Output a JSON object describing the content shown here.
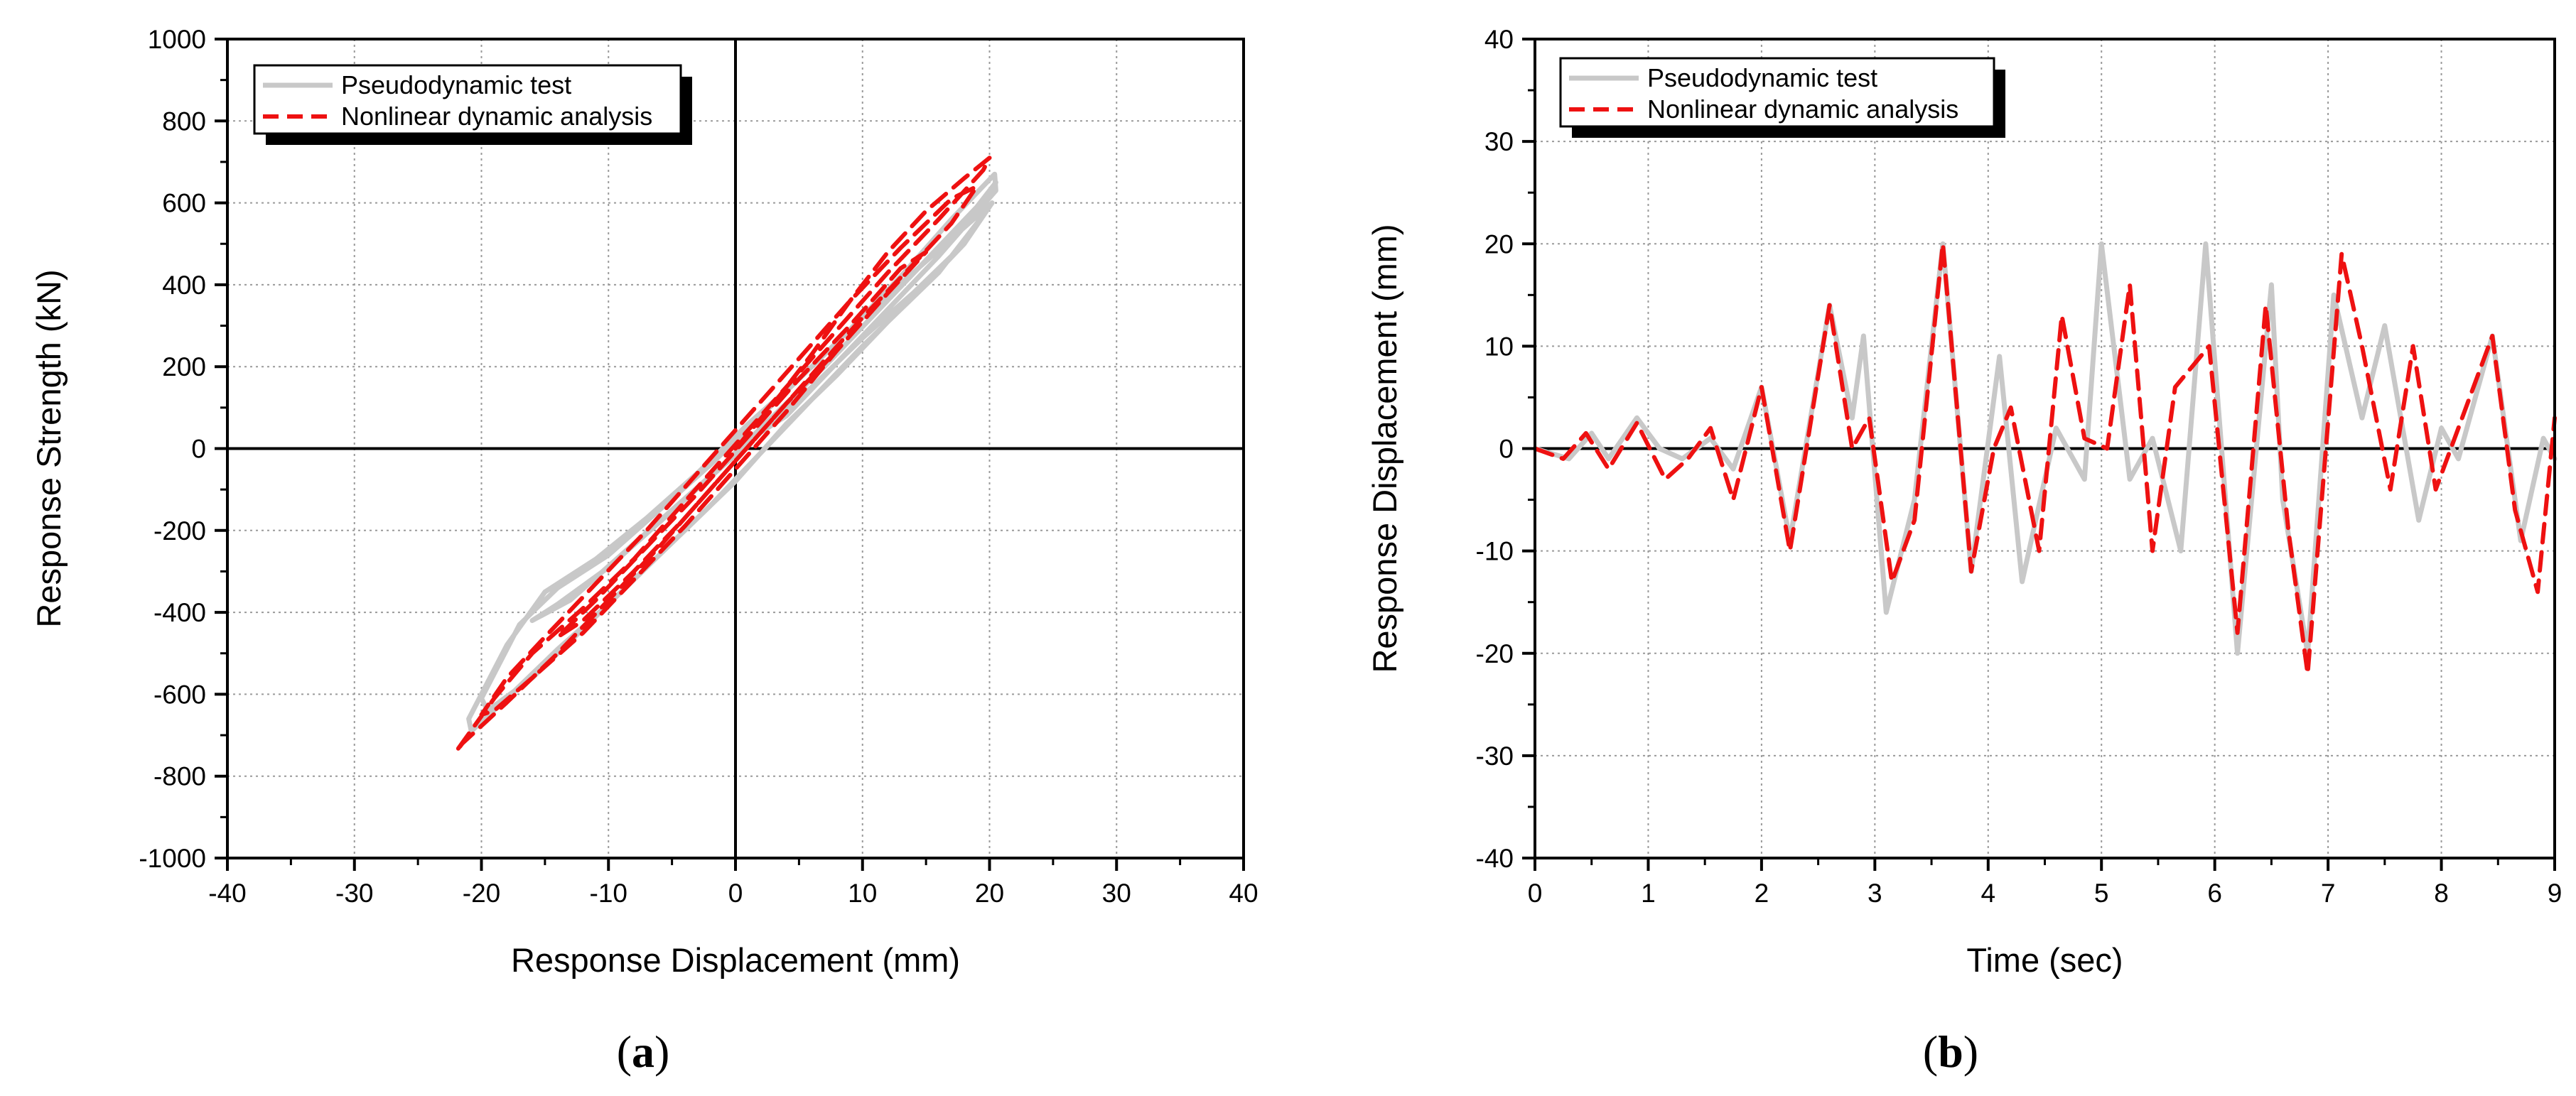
{
  "captions": {
    "a": "a",
    "b": "b"
  },
  "colors": {
    "test": "#c8c8c8",
    "analysis": "#ee1111",
    "grid": "#9a9a9a"
  },
  "chart_data": [
    {
      "id": "a",
      "type": "line",
      "xlabel": "Response Displacement (mm)",
      "ylabel": "Response Strength (kN)",
      "xlim": [
        -40,
        40
      ],
      "ylim": [
        -1000,
        1000
      ],
      "xticks": [
        -40,
        -30,
        -20,
        -10,
        0,
        10,
        20,
        30,
        40
      ],
      "yticks": [
        -1000,
        -800,
        -600,
        -400,
        -200,
        0,
        200,
        400,
        600,
        800,
        1000
      ],
      "grid": true,
      "legend_position": "top-left",
      "series": [
        {
          "name": "Pseudodynamic test",
          "style": "solid",
          "x": [
            0,
            4,
            8,
            12,
            16,
            20.5,
            20.4,
            17,
            13,
            9,
            5,
            1,
            -3,
            -7,
            -11,
            -15,
            -18,
            -21,
            -20.8,
            -18,
            -14,
            -10,
            -6,
            -2,
            2,
            6,
            10,
            14,
            18,
            20.2,
            18,
            14,
            10,
            6,
            2,
            -2,
            -6,
            -10,
            -14,
            -17,
            -20,
            -19.5,
            -16,
            -12,
            -8,
            -4,
            0,
            4,
            8,
            12,
            16,
            19.5,
            18,
            14,
            10,
            6,
            2,
            -2,
            -6,
            -10,
            -14,
            -16,
            -13,
            -9,
            -5,
            -1,
            3,
            7,
            11,
            15,
            19,
            20.5
          ],
          "y": [
            0,
            80,
            210,
            340,
            470,
            630,
            670,
            560,
            420,
            290,
            170,
            60,
            -60,
            -170,
            -270,
            -350,
            -480,
            -660,
            -690,
            -610,
            -490,
            -380,
            -260,
            -140,
            -10,
            120,
            250,
            370,
            500,
            600,
            540,
            430,
            320,
            200,
            80,
            -40,
            -150,
            -260,
            -340,
            -430,
            -610,
            -640,
            -560,
            -440,
            -320,
            -200,
            -80,
            60,
            180,
            310,
            430,
            570,
            500,
            380,
            270,
            150,
            40,
            -70,
            -180,
            -290,
            -380,
            -420,
            -370,
            -260,
            -150,
            -40,
            80,
            200,
            330,
            460,
            590,
            650
          ]
        },
        {
          "name": "Nonlinear dynamic analysis",
          "style": "dashed",
          "x": [
            0,
            3,
            6,
            9,
            12,
            15,
            18,
            20,
            19.5,
            16,
            12,
            8,
            4,
            0,
            -4,
            -8,
            -12,
            -16,
            -19,
            -22,
            -21.5,
            -18,
            -14,
            -10,
            -6,
            -2,
            2,
            6,
            10,
            14,
            17,
            19,
            17,
            13,
            9,
            5,
            1,
            -3,
            -7,
            -11,
            -15,
            -18,
            -20,
            -19,
            -16,
            -12,
            -8,
            -4,
            0,
            4,
            8,
            12,
            15,
            13,
            9,
            5,
            1,
            -3,
            -7,
            -11,
            -14,
            -12,
            -8,
            -4,
            0,
            4,
            8
          ],
          "y": [
            0,
            110,
            230,
            360,
            480,
            580,
            660,
            710,
            680,
            560,
            430,
            290,
            150,
            10,
            -130,
            -270,
            -390,
            -500,
            -610,
            -740,
            -720,
            -620,
            -500,
            -370,
            -240,
            -100,
            40,
            180,
            320,
            450,
            550,
            640,
            610,
            490,
            360,
            220,
            80,
            -60,
            -200,
            -330,
            -460,
            -560,
            -650,
            -640,
            -560,
            -450,
            -320,
            -190,
            -50,
            90,
            240,
            380,
            480,
            440,
            300,
            170,
            30,
            -110,
            -240,
            -370,
            -460,
            -420,
            -300,
            -170,
            -30,
            110,
            240
          ]
        }
      ]
    },
    {
      "id": "b",
      "type": "line",
      "xlabel": "Time (sec)",
      "ylabel": "Response Displacement (mm)",
      "xlim": [
        0,
        9
      ],
      "ylim": [
        -40,
        40
      ],
      "xticks": [
        0,
        1,
        2,
        3,
        4,
        5,
        6,
        7,
        8,
        9
      ],
      "yticks": [
        -40,
        -30,
        -20,
        -10,
        0,
        10,
        20,
        30,
        40
      ],
      "grid": true,
      "legend_position": "top-left",
      "series": [
        {
          "name": "Pseudodynamic test",
          "style": "solid",
          "x": [
            0,
            0.3,
            0.5,
            0.65,
            0.9,
            1.1,
            1.3,
            1.55,
            1.75,
            2.0,
            2.25,
            2.6,
            2.8,
            2.9,
            3.1,
            3.35,
            3.6,
            3.85,
            4.1,
            4.3,
            4.6,
            4.85,
            5.0,
            5.25,
            5.45,
            5.7,
            5.92,
            6.2,
            6.5,
            6.6,
            6.82,
            7.05,
            7.3,
            7.5,
            7.8,
            8.0,
            8.15,
            8.45,
            8.7,
            8.9,
            9.0
          ],
          "y": [
            0,
            -1,
            1.5,
            -1,
            3,
            0,
            -1,
            1,
            -2,
            6,
            -9,
            14,
            3,
            11,
            -16,
            -5,
            20,
            -12,
            9,
            -13,
            2,
            -3,
            20,
            -3,
            1,
            -10,
            20,
            -20,
            16,
            -5,
            -20,
            15,
            3,
            12,
            -7,
            2,
            -1,
            11,
            -9,
            1,
            -1
          ]
        },
        {
          "name": "Nonlinear dynamic analysis",
          "style": "dashed",
          "x": [
            0,
            0.25,
            0.45,
            0.65,
            0.9,
            1.15,
            1.35,
            1.55,
            1.75,
            2.0,
            2.25,
            2.6,
            2.8,
            2.95,
            3.15,
            3.35,
            3.6,
            3.85,
            4.05,
            4.2,
            4.45,
            4.65,
            4.85,
            5.05,
            5.25,
            5.45,
            5.65,
            5.95,
            6.2,
            6.45,
            6.65,
            6.82,
            7.12,
            7.3,
            7.55,
            7.75,
            7.95,
            8.15,
            8.45,
            8.65,
            8.85,
            9.0
          ],
          "y": [
            0,
            -1,
            1.5,
            -2,
            2.5,
            -3,
            -1,
            2,
            -5,
            6,
            -10,
            14,
            0,
            3,
            -13,
            -7,
            20,
            -12,
            0,
            4,
            -10,
            13,
            1,
            0,
            16,
            -10,
            6,
            10,
            -18,
            14,
            -8,
            -22,
            19,
            10,
            -4,
            10,
            -4,
            2,
            11,
            -6,
            -14,
            3
          ]
        }
      ]
    }
  ]
}
